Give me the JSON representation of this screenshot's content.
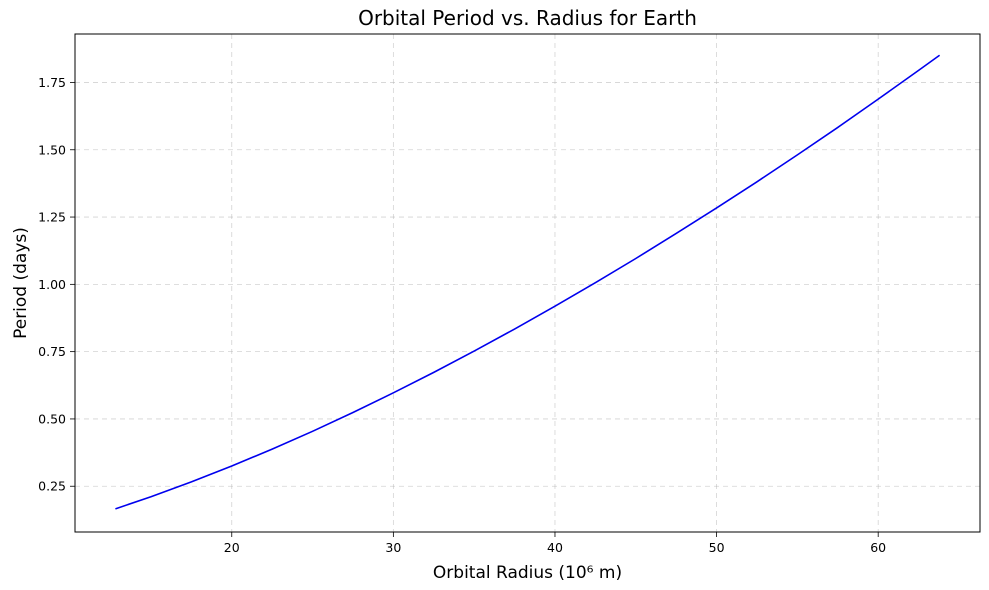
{
  "chart_data": {
    "type": "line",
    "title": "Orbital Period vs. Radius for Earth",
    "xlabel": "Orbital Radius (10⁶ m)",
    "ylabel": "Period (days)",
    "xlim": [
      10.3,
      66.3
    ],
    "ylim": [
      0.08,
      1.93
    ],
    "x_ticks": [
      20,
      30,
      40,
      50,
      60
    ],
    "y_ticks": [
      0.25,
      0.5,
      0.75,
      1.0,
      1.25,
      1.5,
      1.75
    ],
    "x_tick_labels": [
      "20",
      "30",
      "40",
      "50",
      "60"
    ],
    "y_tick_labels": [
      "0.25",
      "0.50",
      "0.75",
      "1.00",
      "1.25",
      "1.50",
      "1.75"
    ],
    "grid": true,
    "series": [
      {
        "color": "#0000ee",
        "x": [
          12.8,
          15,
          17.5,
          20,
          22.5,
          25,
          27.5,
          30,
          32.5,
          35,
          37.5,
          40,
          42.5,
          45,
          47.5,
          50,
          52.5,
          55,
          57.5,
          60,
          62.5,
          63.8
        ],
        "y": [
          0.166,
          0.211,
          0.266,
          0.325,
          0.388,
          0.454,
          0.524,
          0.597,
          0.673,
          0.752,
          0.834,
          0.919,
          1.006,
          1.096,
          1.189,
          1.284,
          1.381,
          1.481,
          1.583,
          1.688,
          1.795,
          1.851
        ]
      }
    ]
  }
}
